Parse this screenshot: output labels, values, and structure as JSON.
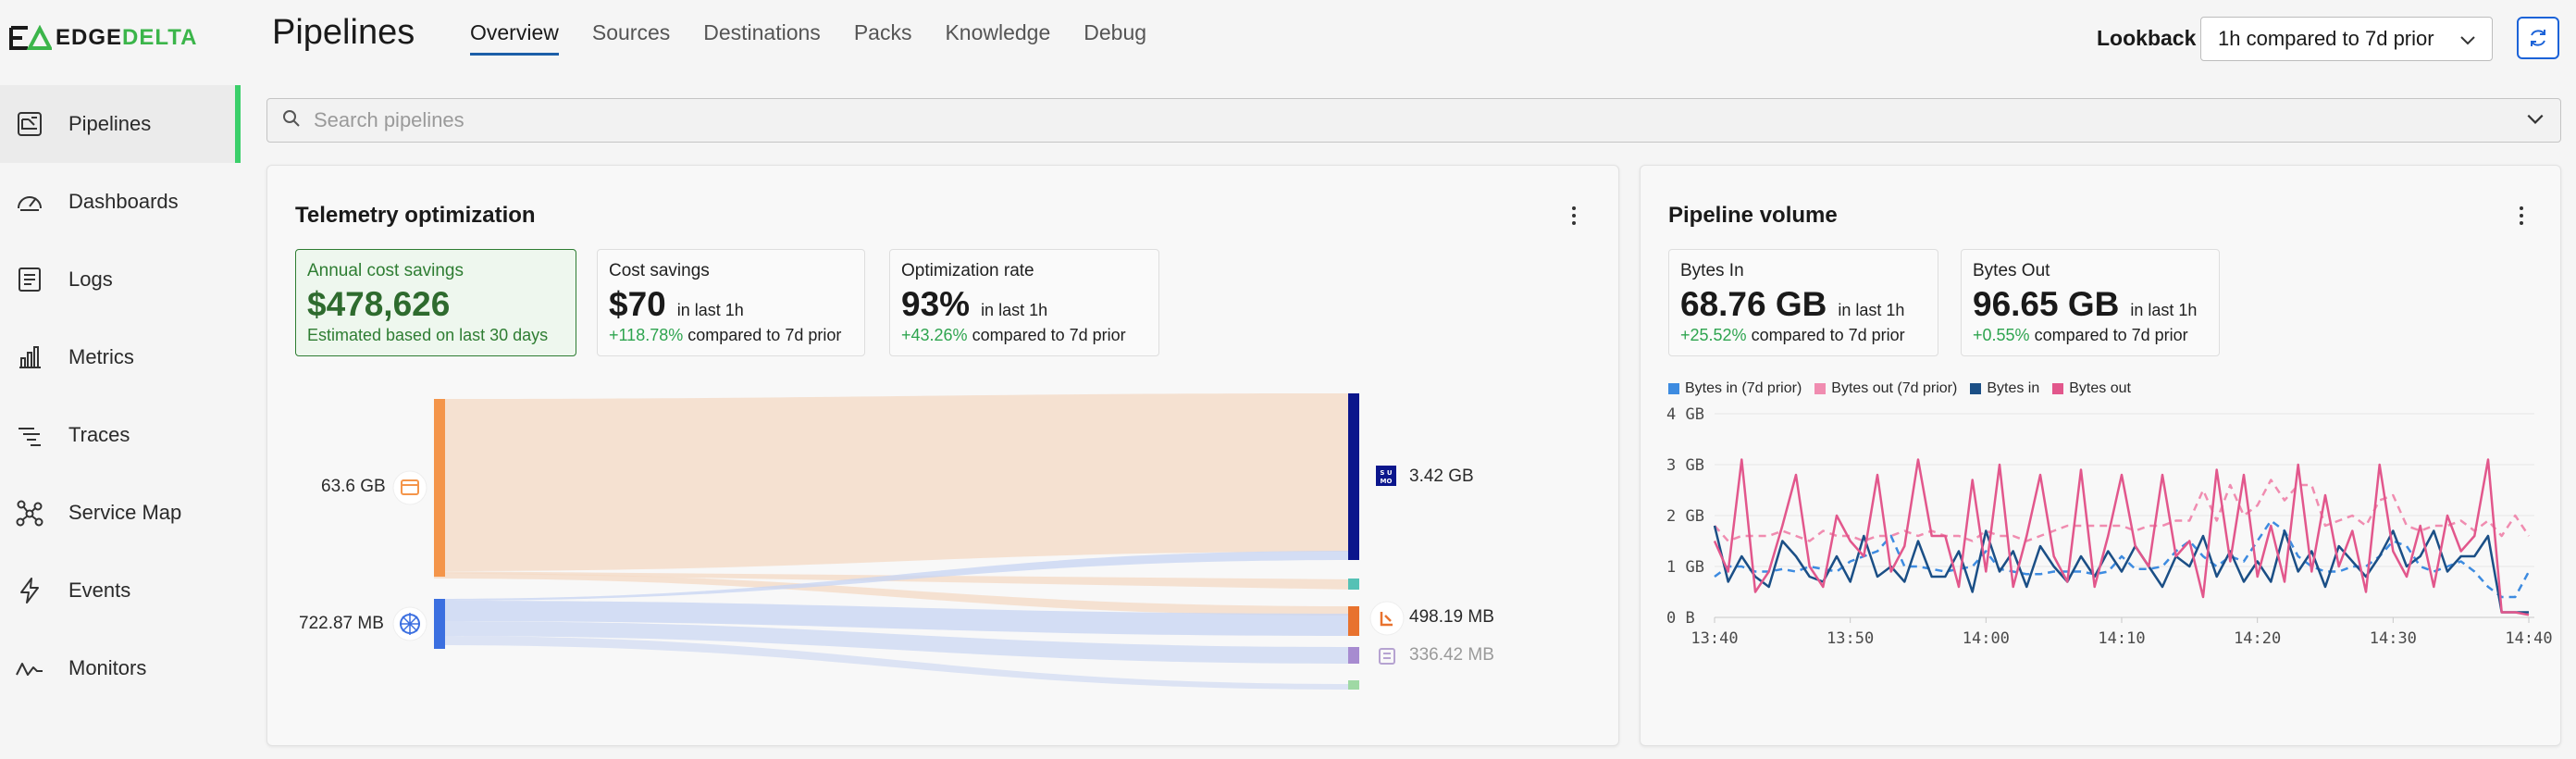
{
  "brand": {
    "edge": "EDGE",
    "delta": "DELTA"
  },
  "sidebar": {
    "items": [
      {
        "label": "Pipelines",
        "icon": "pipelines-icon",
        "active": true
      },
      {
        "label": "Dashboards",
        "icon": "gauge-icon",
        "active": false
      },
      {
        "label": "Logs",
        "icon": "logs-icon",
        "active": false
      },
      {
        "label": "Metrics",
        "icon": "bar-chart-icon",
        "active": false
      },
      {
        "label": "Traces",
        "icon": "traces-icon",
        "active": false
      },
      {
        "label": "Service Map",
        "icon": "service-map-icon",
        "active": false
      },
      {
        "label": "Events",
        "icon": "lightning-icon",
        "active": false
      },
      {
        "label": "Monitors",
        "icon": "pulse-icon",
        "active": false
      }
    ]
  },
  "header": {
    "title": "Pipelines",
    "tabs": [
      "Overview",
      "Sources",
      "Destinations",
      "Packs",
      "Knowledge",
      "Debug"
    ],
    "active_tab": "Overview",
    "lookback_label": "Lookback",
    "lookback_value": "1h compared to 7d prior"
  },
  "search": {
    "placeholder": "Search pipelines"
  },
  "telemetry": {
    "title": "Telemetry optimization",
    "annual": {
      "label": "Annual cost savings",
      "value": "$478,626",
      "sub": "Estimated based on last 30 days"
    },
    "cost": {
      "label": "Cost savings",
      "value": "$70",
      "suffix": "in last 1h",
      "delta": "+118.78%",
      "compare": "compared to 7d prior"
    },
    "opt": {
      "label": "Optimization rate",
      "value": "93%",
      "suffix": "in last 1h",
      "delta": "+43.26%",
      "compare": "compared to 7d prior"
    },
    "sources": [
      {
        "label": "63.6 GB",
        "icon": "file-source-icon",
        "color": "#f4954a"
      },
      {
        "label": "722.87 MB",
        "icon": "kubernetes-icon",
        "color": "#3b6fe0"
      }
    ],
    "destinations": [
      {
        "label": "3.42 GB",
        "icon": "sumo-logic-icon",
        "color": "#0b168c"
      },
      {
        "label": "",
        "icon": "",
        "color": "#55c1b5"
      },
      {
        "label": "498.19 MB",
        "icon": "hands-icon",
        "color": "#e8722e"
      },
      {
        "label": "336.42 MB",
        "icon": "archive-icon",
        "color": "#a78bd0"
      }
    ],
    "sumo_glyph": "S U\nMO"
  },
  "volume": {
    "title": "Pipeline volume",
    "bytes_in": {
      "label": "Bytes In",
      "value": "68.76 GB",
      "suffix": "in last 1h",
      "delta": "+25.52%",
      "compare": "compared to 7d prior"
    },
    "bytes_out": {
      "label": "Bytes Out",
      "value": "96.65 GB",
      "suffix": "in last 1h",
      "delta": "+0.55%",
      "compare": "compared to 7d prior"
    }
  },
  "chart_data": {
    "type": "line",
    "x": [
      "13:40",
      "13:41",
      "13:42",
      "13:43",
      "13:44",
      "13:45",
      "13:46",
      "13:47",
      "13:48",
      "13:49",
      "13:50",
      "13:51",
      "13:52",
      "13:53",
      "13:54",
      "13:55",
      "13:56",
      "13:57",
      "13:58",
      "13:59",
      "14:00",
      "14:01",
      "14:02",
      "14:03",
      "14:04",
      "14:05",
      "14:06",
      "14:07",
      "14:08",
      "14:09",
      "14:10",
      "14:11",
      "14:12",
      "14:13",
      "14:14",
      "14:15",
      "14:16",
      "14:17",
      "14:18",
      "14:19",
      "14:20",
      "14:21",
      "14:22",
      "14:23",
      "14:24",
      "14:25",
      "14:26",
      "14:27",
      "14:28",
      "14:29",
      "14:30",
      "14:31",
      "14:32",
      "14:33",
      "14:34",
      "14:35",
      "14:36",
      "14:37",
      "14:38",
      "14:39",
      "14:40"
    ],
    "xticks": [
      "13:40",
      "13:50",
      "14:00",
      "14:10",
      "14:20",
      "14:30",
      "14:40"
    ],
    "yticks": [
      "0 B",
      "1 GB",
      "2 GB",
      "3 GB",
      "4 GB"
    ],
    "ylim": [
      0,
      4
    ],
    "series": [
      {
        "name": "Bytes in (7d prior)",
        "color": "#3d8be0",
        "dashed": true,
        "values": [
          0.8,
          1.0,
          1.0,
          0.9,
          0.9,
          0.95,
          0.9,
          1.0,
          0.95,
          0.9,
          1.1,
          1.2,
          1.3,
          1.6,
          1.0,
          1.0,
          0.95,
          0.9,
          0.95,
          1.0,
          1.3,
          0.95,
          0.9,
          0.85,
          0.85,
          0.9,
          0.9,
          0.9,
          0.85,
          0.9,
          1.2,
          0.95,
          0.95,
          1.0,
          1.3,
          1.5,
          1.2,
          1.0,
          1.2,
          1.1,
          1.5,
          1.9,
          1.7,
          1.2,
          1.0,
          0.9,
          0.9,
          1.0,
          1.0,
          1.2,
          1.5,
          1.4,
          1.0,
          0.9,
          1.0,
          1.1,
          0.9,
          0.6,
          0.4,
          0.4,
          0.9
        ]
      },
      {
        "name": "Bytes out (7d prior)",
        "color": "#f08cb0",
        "dashed": true,
        "values": [
          1.8,
          1.5,
          1.6,
          1.6,
          1.6,
          1.7,
          1.6,
          1.5,
          1.7,
          1.6,
          1.6,
          1.5,
          1.6,
          1.6,
          1.7,
          1.6,
          1.7,
          1.6,
          1.6,
          1.5,
          1.7,
          1.6,
          1.6,
          1.5,
          1.6,
          1.7,
          1.8,
          1.8,
          1.8,
          1.8,
          1.8,
          1.7,
          1.8,
          1.8,
          1.9,
          1.9,
          2.5,
          1.9,
          2.6,
          2.0,
          2.2,
          2.7,
          2.3,
          2.6,
          2.6,
          1.8,
          1.9,
          2.0,
          1.8,
          2.3,
          2.4,
          1.8,
          1.7,
          1.8,
          1.8,
          1.9,
          1.7,
          1.9,
          1.6,
          2.0,
          1.6
        ]
      },
      {
        "name": "Bytes in",
        "color": "#1b4f86",
        "dashed": false,
        "values": [
          1.8,
          0.7,
          1.2,
          0.8,
          0.6,
          1.5,
          1.2,
          0.8,
          0.7,
          1.2,
          0.7,
          1.6,
          0.8,
          1.0,
          0.7,
          1.5,
          0.8,
          0.8,
          1.3,
          0.5,
          1.7,
          0.9,
          1.3,
          0.6,
          1.4,
          1.0,
          0.7,
          1.2,
          0.8,
          1.3,
          0.9,
          1.4,
          1.0,
          0.6,
          1.2,
          1.0,
          1.6,
          0.8,
          1.3,
          0.7,
          1.1,
          0.7,
          1.7,
          0.9,
          1.3,
          0.6,
          1.4,
          1.1,
          0.8,
          1.2,
          1.7,
          1.0,
          1.2,
          1.7,
          0.9,
          1.2,
          1.2,
          1.6,
          0.1,
          0.1,
          0.1
        ]
      },
      {
        "name": "Bytes out",
        "color": "#e2578c",
        "dashed": false,
        "values": [
          1.5,
          0.9,
          3.1,
          0.5,
          0.9,
          1.8,
          2.8,
          1.0,
          0.6,
          2.0,
          1.5,
          1.2,
          2.8,
          0.9,
          1.4,
          3.1,
          1.6,
          1.6,
          0.6,
          2.7,
          0.9,
          3.0,
          0.6,
          1.6,
          2.8,
          1.2,
          0.7,
          2.9,
          0.6,
          1.6,
          2.8,
          1.4,
          1.0,
          2.8,
          1.2,
          1.5,
          0.4,
          2.9,
          1.1,
          2.8,
          0.8,
          1.8,
          0.7,
          3.0,
          0.9,
          2.4,
          1.0,
          1.7,
          0.5,
          3.0,
          1.3,
          0.8,
          1.8,
          0.6,
          2.0,
          1.3,
          1.6,
          3.1,
          0.1,
          0.1,
          0.05
        ]
      }
    ]
  }
}
